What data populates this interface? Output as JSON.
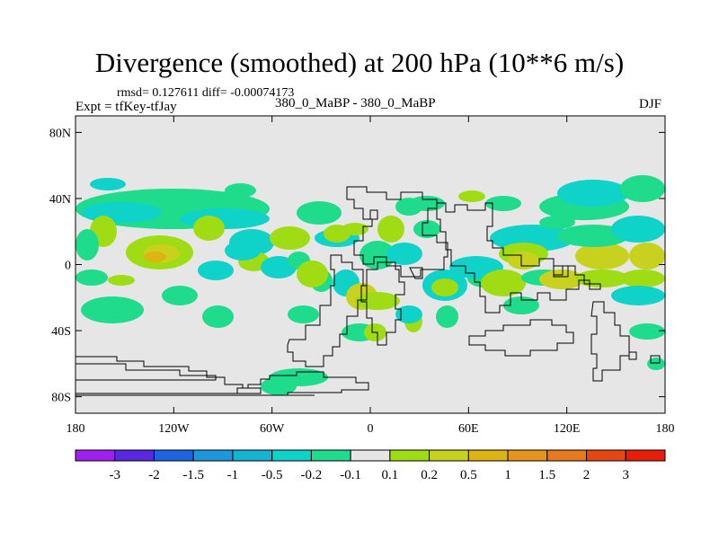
{
  "title": "Divergence (smoothed) at 200 hPa (10**6 m/s)",
  "stats": "rmsd= 0.127611 diff= -0.00074173",
  "expt": "Expt = tfKey-tfJay",
  "runs": "380_0_MaBP - 380_0_MaBP",
  "season": "DJF",
  "map": {
    "lon_range": [
      -180,
      180
    ],
    "lat_range": [
      -90,
      90
    ],
    "background_color": "#e6e6e6",
    "lat_ticks": [
      {
        "value": 80,
        "label": "80N"
      },
      {
        "value": 40,
        "label": "40N"
      },
      {
        "value": 0,
        "label": "0"
      },
      {
        "value": -40,
        "label": "40S"
      },
      {
        "value": -80,
        "label": "80S"
      }
    ],
    "lon_ticks": [
      {
        "value": -180,
        "label": "180"
      },
      {
        "value": -120,
        "label": "120W"
      },
      {
        "value": -60,
        "label": "60W"
      },
      {
        "value": 0,
        "label": "0"
      },
      {
        "value": 60,
        "label": "60E"
      },
      {
        "value": 120,
        "label": "120E"
      },
      {
        "value": 180,
        "label": "180"
      }
    ]
  },
  "colorbar": {
    "colors": [
      "#a020f0",
      "#5a28e0",
      "#1e64e0",
      "#1e96dc",
      "#14b4d2",
      "#0fd2c8",
      "#1edc8c",
      "#e6e6e6",
      "#a0dc14",
      "#c8d21e",
      "#dcb414",
      "#e6961e",
      "#e6781e",
      "#e64614",
      "#e61e0a"
    ],
    "labels": [
      "-3",
      "-2",
      "-1.5",
      "-1",
      "-0.5",
      "-0.2",
      "-0.1",
      "0.1",
      "0.2",
      "0.5",
      "1",
      "1.5",
      "2",
      "3"
    ]
  },
  "field_colors": {
    "weak_neg": "#1edc8c",
    "neg": "#0fd2c8",
    "weak_pos": "#a0dc14",
    "pos": "#c8d21e",
    "strong_pos": "#dcb414"
  }
}
